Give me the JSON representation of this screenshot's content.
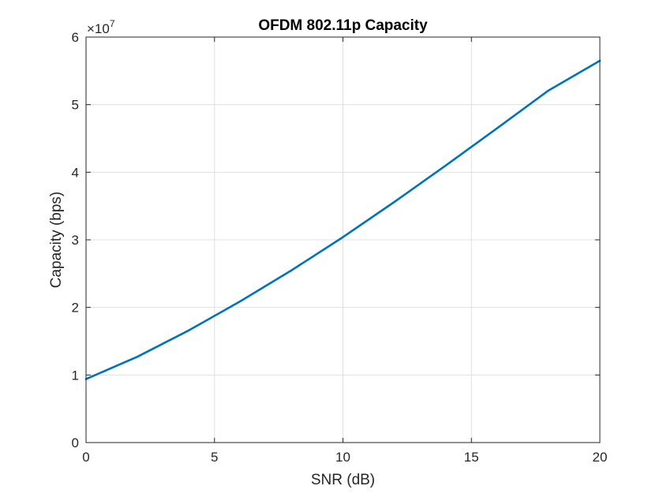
{
  "chart_data": {
    "type": "line",
    "title": "OFDM 802.11p Capacity",
    "xlabel": "SNR (dB)",
    "ylabel": "Capacity (bps)",
    "xlim": [
      0,
      20
    ],
    "ylim": [
      0,
      6
    ],
    "x_ticks": [
      0,
      5,
      10,
      15,
      20
    ],
    "y_ticks": [
      0,
      1,
      2,
      3,
      4,
      5,
      6
    ],
    "x_tick_labels": [
      "0",
      "5",
      "10",
      "15",
      "20"
    ],
    "y_tick_labels": [
      "0",
      "1",
      "2",
      "3",
      "4",
      "5",
      "6"
    ],
    "y_multiplier_base": "×10",
    "y_multiplier_exponent": "7",
    "grid": true,
    "legend": "none",
    "series": [
      {
        "color": "#0072bd",
        "x": [
          0,
          2,
          4,
          6,
          8,
          10,
          12,
          14,
          16,
          18,
          20
        ],
        "y": [
          0.94,
          1.27,
          1.66,
          2.09,
          2.55,
          3.04,
          3.56,
          4.1,
          4.65,
          5.21,
          5.65
        ]
      }
    ]
  }
}
